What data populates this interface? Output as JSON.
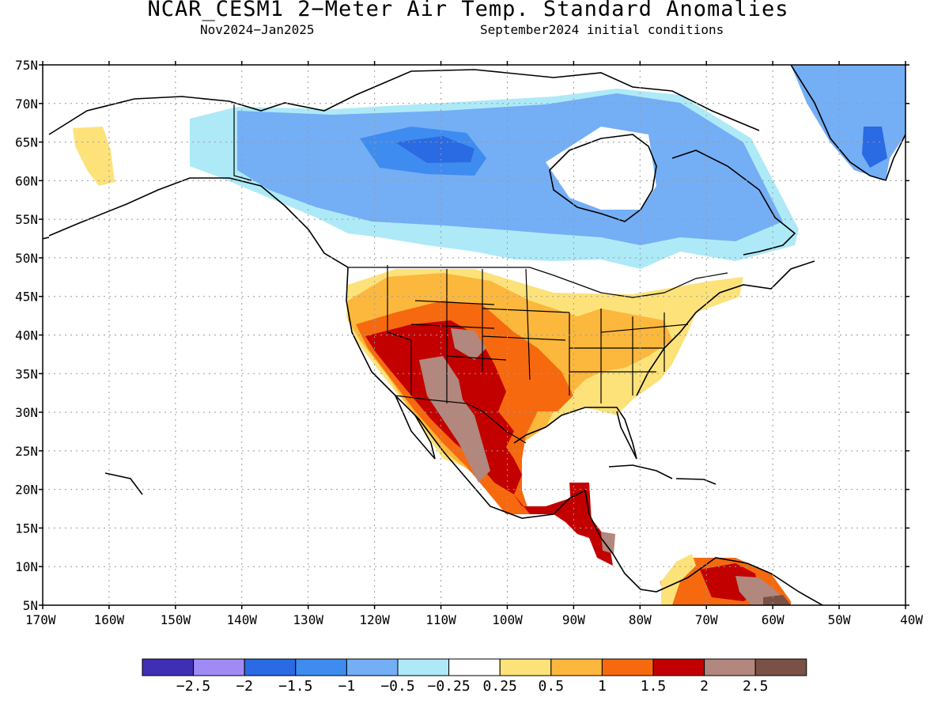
{
  "title": "NCAR_CESM1 2−Meter Air Temp. Standard Anomalies",
  "subtitle_period": "Nov2024−Jan2025",
  "subtitle_conditions": "September2024 initial conditions",
  "lat_labels": [
    "75N",
    "70N",
    "65N",
    "60N",
    "55N",
    "50N",
    "45N",
    "40N",
    "35N",
    "30N",
    "25N",
    "20N",
    "15N",
    "10N",
    "5N"
  ],
  "lon_labels": [
    "170W",
    "160W",
    "150W",
    "140W",
    "130W",
    "120W",
    "110W",
    "100W",
    "90W",
    "80W",
    "70W",
    "60W",
    "50W",
    "40W"
  ],
  "colorbar": {
    "colors": [
      "#3f2fb4",
      "#a08bf5",
      "#2a6ae3",
      "#3e8cef",
      "#74aef5",
      "#aee9f7",
      "#ffffff",
      "#fde27a",
      "#fcb73d",
      "#f6690f",
      "#c30000",
      "#b2877d",
      "#7a5146"
    ],
    "labels": [
      "−2.5",
      "−2",
      "−1.5",
      "−1",
      "−0.5",
      "−0.25",
      "0.25",
      "0.5",
      "1",
      "1.5",
      "2",
      "2.5"
    ]
  },
  "region_colors": {
    "dark_blue": "#2a6ae3",
    "mid_blue": "#3e8cef",
    "blue": "#74aef5",
    "light_blue": "#aee9f7",
    "yellow": "#fde27a",
    "orange": "#fcb73d",
    "dark_orange": "#f6690f",
    "red": "#c30000",
    "brown": "#b2877d",
    "dark_brown": "#7a5146"
  }
}
